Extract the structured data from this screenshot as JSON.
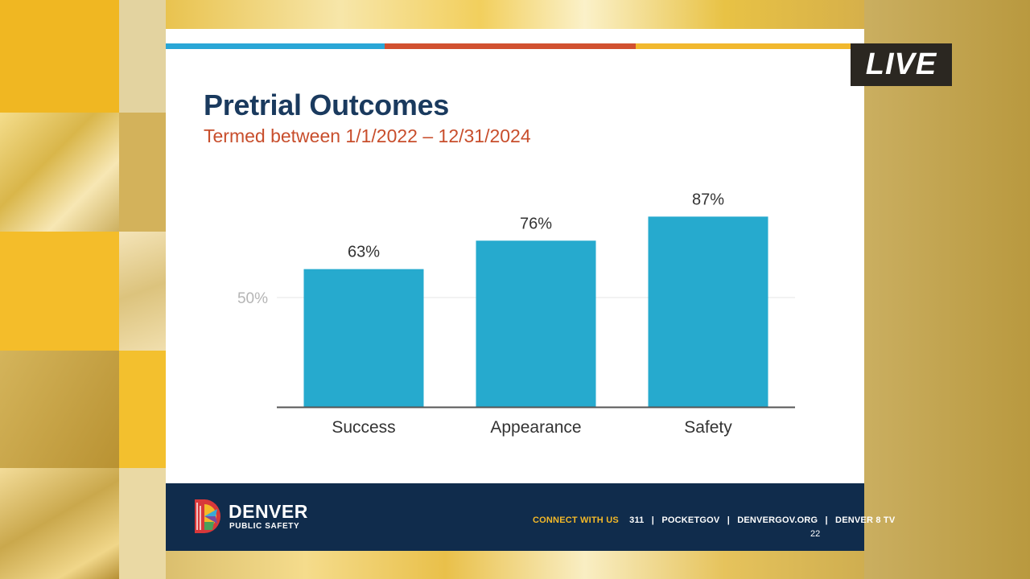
{
  "slide": {
    "title": "Pretrial Outcomes",
    "subtitle": "Termed between 1/1/2022 – 12/31/2024",
    "stripe_colors": [
      "#29a6d6",
      "#d1502f",
      "#f1b82d"
    ],
    "page_number": "22"
  },
  "chart_data": {
    "type": "bar",
    "categories": [
      "Success",
      "Appearance",
      "Safety"
    ],
    "values": [
      63,
      76,
      87
    ],
    "data_labels": [
      "63%",
      "76%",
      "87%"
    ],
    "ytick_labels": [
      "50%"
    ],
    "ytick_values": [
      50
    ],
    "ylim": [
      0,
      100
    ],
    "bar_color": "#26aace",
    "title": "",
    "xlabel": "",
    "ylabel": "",
    "grid": true
  },
  "footer": {
    "brand_name": "DENVER",
    "brand_sub": "PUBLIC SAFETY",
    "connect_label": "CONNECT WITH US",
    "links": [
      "311",
      "POCKETGOV",
      "DENVERGOV.ORG",
      "DENVER 8 TV"
    ],
    "accent_color": "#f4b928",
    "background_color": "#102c4c"
  },
  "badge": {
    "live_label": "LIVE"
  },
  "icons": {
    "logo": "denver-d-sun-logo"
  }
}
